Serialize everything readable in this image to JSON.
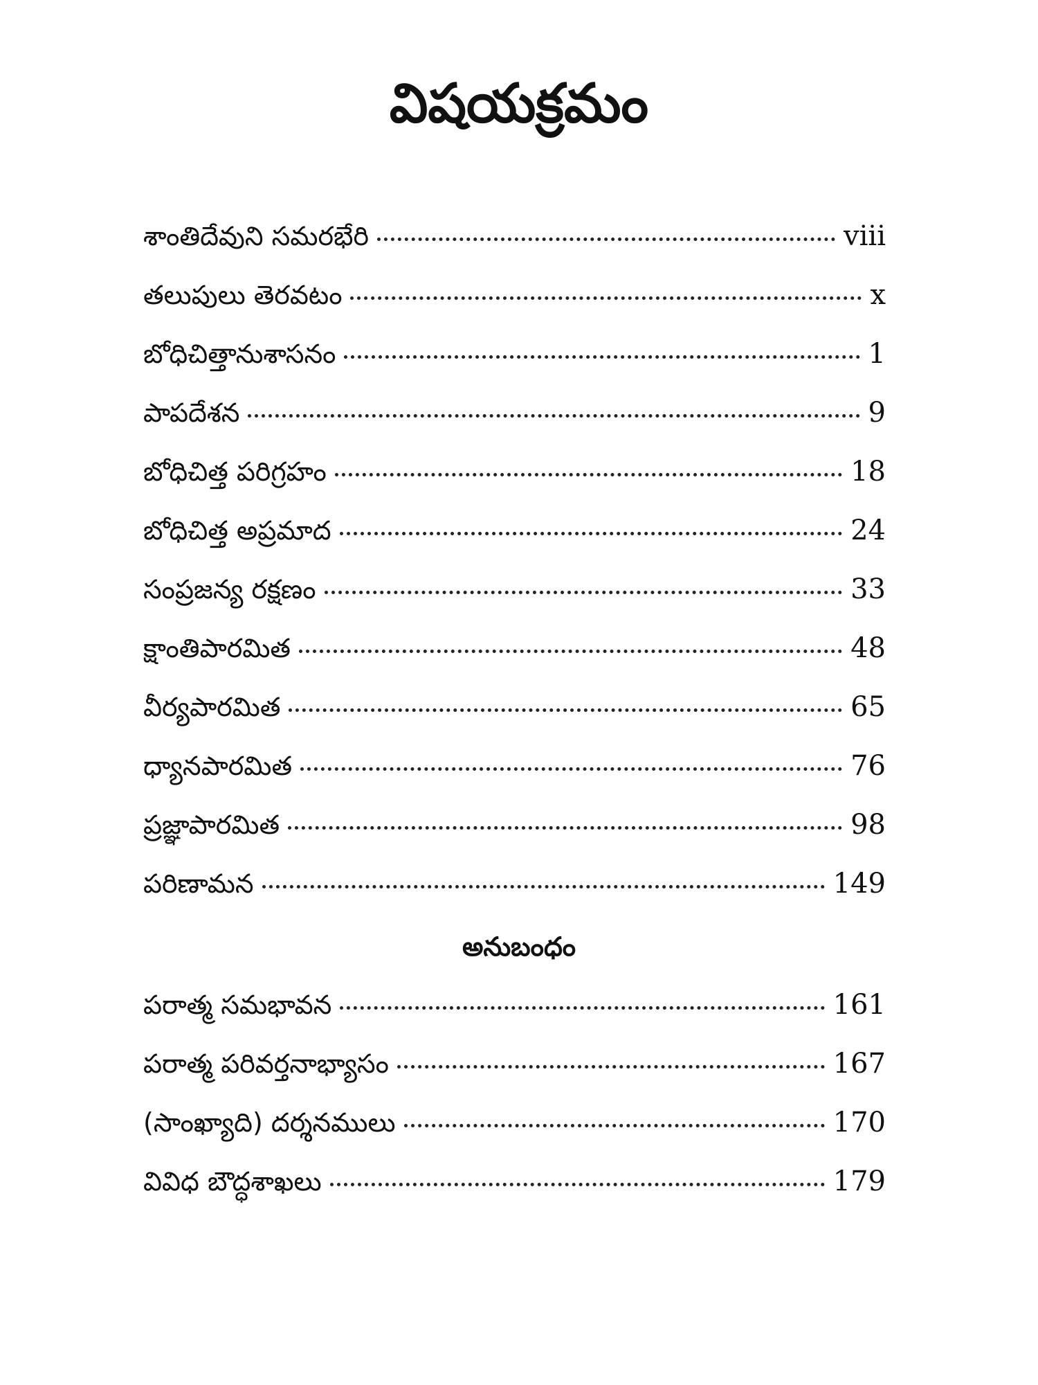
{
  "title": "విషయక్రమం",
  "entries": [
    {
      "label": "శాంతిదేవుని సమరభేరి",
      "page": "viii"
    },
    {
      "label": "తలుపులు తెరవటం",
      "page": "x"
    },
    {
      "label": "బోధిచిత్తానుశాసనం",
      "page": "1"
    },
    {
      "label": "పాపదేశన",
      "page": "9"
    },
    {
      "label": "బోధిచిత్త పరిగ్రహం",
      "page": "18"
    },
    {
      "label": "బోధిచిత్త అప్రమాద",
      "page": "24"
    },
    {
      "label": "సంప్రజన్య రక్షణం",
      "page": "33"
    },
    {
      "label": "క్షాంతిపారమిత",
      "page": "48"
    },
    {
      "label": "వీర్యపారమిత",
      "page": "65"
    },
    {
      "label": "ధ్యానపారమిత",
      "page": "76"
    },
    {
      "label": "ప్రజ్ఞాపారమిత",
      "page": "98"
    },
    {
      "label": "పరిణామన",
      "page": "149"
    }
  ],
  "appendix_heading": "అనుబంధం",
  "appendix_entries": [
    {
      "label": "పరాత్మ సమభావన",
      "page": "161"
    },
    {
      "label": "పరాత్మ పరివర్తనాభ్యాసం",
      "page": "167"
    },
    {
      "label": "(సాంఖ్యాది) దర్శనములు",
      "page": "170"
    },
    {
      "label": "వివిధ బౌద్ధశాఖలు",
      "page": "179"
    }
  ]
}
